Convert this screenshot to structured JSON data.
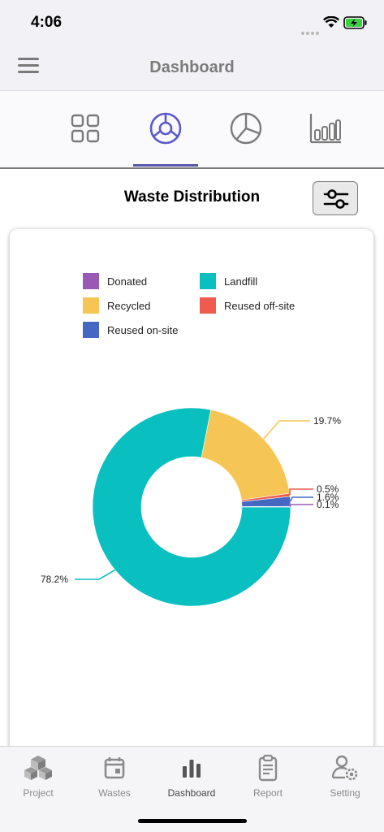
{
  "status_bar": {
    "time": "4:06"
  },
  "nav": {
    "title": "Dashboard",
    "menu_icon": "hamburger-menu-icon"
  },
  "chart_tabs": [
    {
      "icon": "grid-icon",
      "active": false
    },
    {
      "icon": "donut-chart-icon",
      "active": true
    },
    {
      "icon": "pie-chart-icon",
      "active": false
    },
    {
      "icon": "bar-chart-icon",
      "active": false
    }
  ],
  "section": {
    "title": "Waste Distribution",
    "filter_icon": "sliders-icon"
  },
  "legend": [
    {
      "label": "Donated",
      "color": "#9b59b6"
    },
    {
      "label": "Landfill",
      "color": "#0abfc0"
    },
    {
      "label": "Recycled",
      "color": "#f5c655"
    },
    {
      "label": "Reused off-site",
      "color": "#ef5b4e"
    },
    {
      "label": "Reused on-site",
      "color": "#4568c3"
    }
  ],
  "chart_data": {
    "type": "pie",
    "title": "Waste Distribution",
    "donut": true,
    "categories": [
      "Donated",
      "Landfill",
      "Recycled",
      "Reused off-site",
      "Reused on-site"
    ],
    "values": [
      0.1,
      78.2,
      19.7,
      0.5,
      1.6
    ],
    "labels": [
      "0.1%",
      "78.2%",
      "19.7%",
      "0.5%",
      "1.6%"
    ],
    "colors": [
      "#9b59b6",
      "#0abfc0",
      "#f5c655",
      "#ef5b4e",
      "#4568c3"
    ],
    "legend_position": "top"
  },
  "bottom_tabs": [
    {
      "label": "Project",
      "icon": "cubes-icon",
      "active": false
    },
    {
      "label": "Wastes",
      "icon": "calendar-icon",
      "active": false
    },
    {
      "label": "Dashboard",
      "icon": "bar-chart-icon",
      "active": true
    },
    {
      "label": "Report",
      "icon": "clipboard-icon",
      "active": false
    },
    {
      "label": "Setting",
      "icon": "user-gear-icon",
      "active": false
    }
  ]
}
